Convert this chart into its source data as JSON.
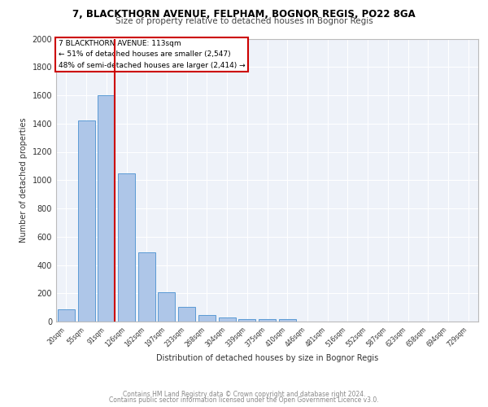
{
  "title1": "7, BLACKTHORN AVENUE, FELPHAM, BOGNOR REGIS, PO22 8GA",
  "title2": "Size of property relative to detached houses in Bognor Regis",
  "xlabel": "Distribution of detached houses by size in Bognor Regis",
  "ylabel": "Number of detached properties",
  "categories": [
    "20sqm",
    "55sqm",
    "91sqm",
    "126sqm",
    "162sqm",
    "197sqm",
    "233sqm",
    "268sqm",
    "304sqm",
    "339sqm",
    "375sqm",
    "410sqm",
    "446sqm",
    "481sqm",
    "516sqm",
    "552sqm",
    "587sqm",
    "623sqm",
    "658sqm",
    "694sqm",
    "729sqm"
  ],
  "values": [
    85,
    1420,
    1600,
    1045,
    490,
    205,
    105,
    45,
    30,
    20,
    20,
    20,
    0,
    0,
    0,
    0,
    0,
    0,
    0,
    0,
    0
  ],
  "bar_color": "#aec6e8",
  "bar_edge_color": "#5b9bd5",
  "vline_color": "#cc0000",
  "annotation_title": "7 BLACKTHORN AVENUE: 113sqm",
  "annotation_line1": "← 51% of detached houses are smaller (2,547)",
  "annotation_line2": "48% of semi-detached houses are larger (2,414) →",
  "annotation_box_color": "#cc0000",
  "ylim": [
    0,
    2000
  ],
  "yticks": [
    0,
    200,
    400,
    600,
    800,
    1000,
    1200,
    1400,
    1600,
    1800,
    2000
  ],
  "background_color": "#eef2f9",
  "grid_color": "#ffffff",
  "footer1": "Contains HM Land Registry data © Crown copyright and database right 2024.",
  "footer2": "Contains public sector information licensed under the Open Government Licence v3.0."
}
